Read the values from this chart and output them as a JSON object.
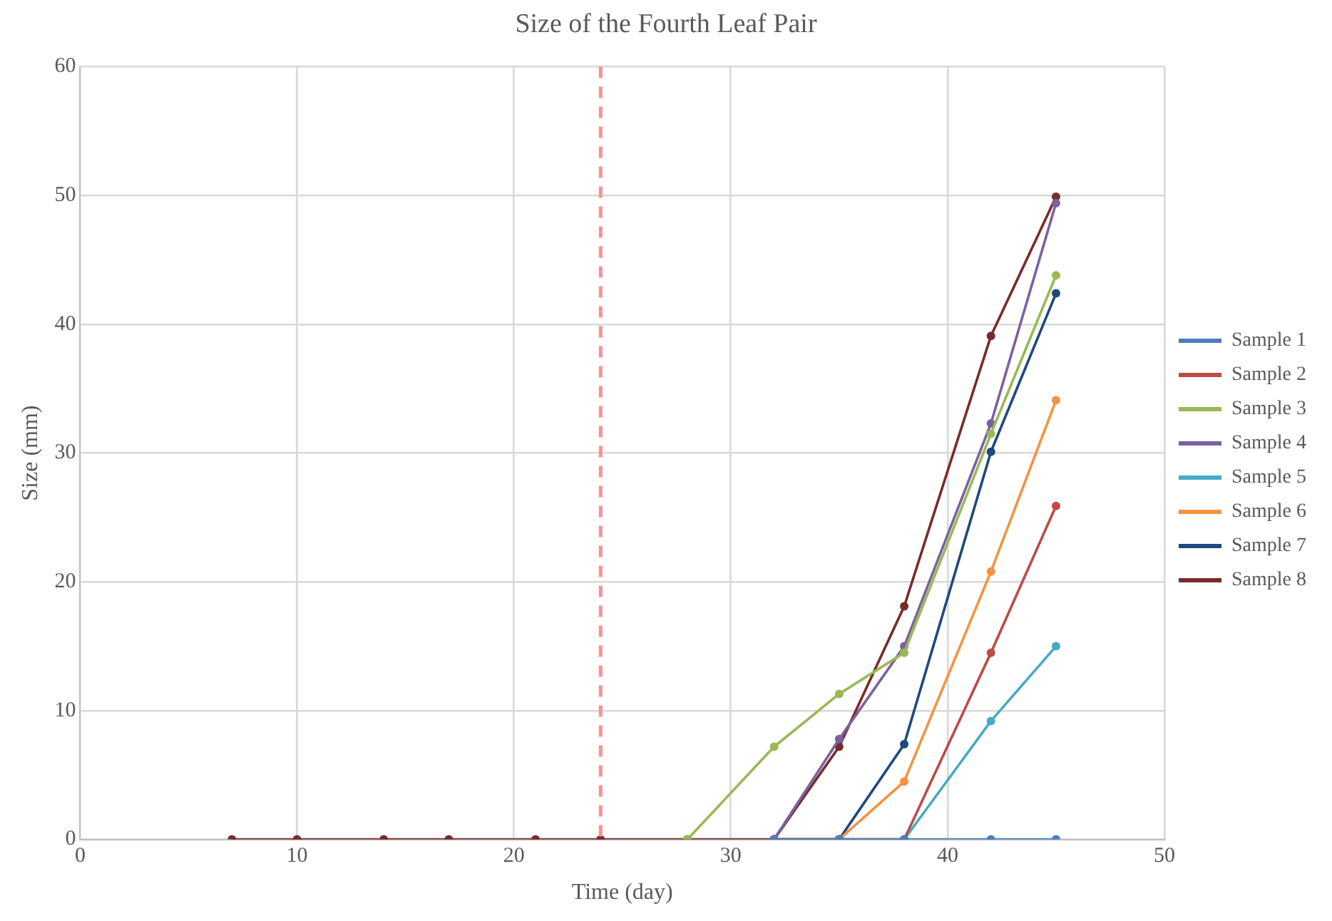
{
  "chart_data": {
    "type": "line",
    "title": "Size of the Fourth Leaf Pair",
    "xlabel": "Time (day)",
    "ylabel": "Size (mm)",
    "x": [
      7,
      10,
      14,
      17,
      21,
      24,
      28,
      32,
      35,
      38,
      42,
      45
    ],
    "series": [
      {
        "name": "Sample 1",
        "color": "#4a7ebb",
        "values": [
          null,
          null,
          null,
          null,
          null,
          null,
          null,
          0,
          0,
          0,
          0,
          0
        ]
      },
      {
        "name": "Sample 2",
        "color": "#be4b48",
        "values": [
          null,
          null,
          null,
          null,
          null,
          null,
          null,
          0,
          0,
          0,
          14.5,
          25.9
        ]
      },
      {
        "name": "Sample 3",
        "color": "#98b954",
        "values": [
          null,
          null,
          null,
          null,
          null,
          null,
          0,
          7.2,
          11.3,
          14.5,
          31.5,
          43.8
        ]
      },
      {
        "name": "Sample 4",
        "color": "#7d60a0",
        "values": [
          null,
          null,
          null,
          null,
          null,
          null,
          null,
          0,
          7.8,
          15,
          32.3,
          49.4
        ]
      },
      {
        "name": "Sample 5",
        "color": "#46aac5",
        "values": [
          null,
          null,
          null,
          null,
          null,
          null,
          null,
          0,
          0,
          0,
          9.2,
          15
        ]
      },
      {
        "name": "Sample 6",
        "color": "#f69240",
        "values": [
          null,
          null,
          null,
          null,
          null,
          null,
          null,
          0,
          0,
          4.5,
          20.8,
          34.1
        ]
      },
      {
        "name": "Sample 7",
        "color": "#1f497d",
        "values": [
          null,
          null,
          null,
          null,
          null,
          null,
          null,
          0,
          0,
          7.4,
          30.1,
          42.4
        ]
      },
      {
        "name": "Sample 8",
        "color": "#772c2a",
        "values": [
          0,
          0,
          0,
          0,
          0,
          0,
          0,
          0,
          7.2,
          18.1,
          39.1,
          49.9
        ]
      }
    ],
    "xlim": [
      0,
      50
    ],
    "xticks": [
      0,
      10,
      20,
      30,
      40,
      50
    ],
    "ylim": [
      0,
      60
    ],
    "yticks": [
      0,
      10,
      20,
      30,
      40,
      50,
      60
    ],
    "ref_lines": [
      {
        "axis": "x",
        "value": 24,
        "color": "#ff8f8f",
        "line_style": "dashed"
      }
    ],
    "grid": true,
    "legend": "right",
    "marker": "circle",
    "line_style": "solid"
  }
}
